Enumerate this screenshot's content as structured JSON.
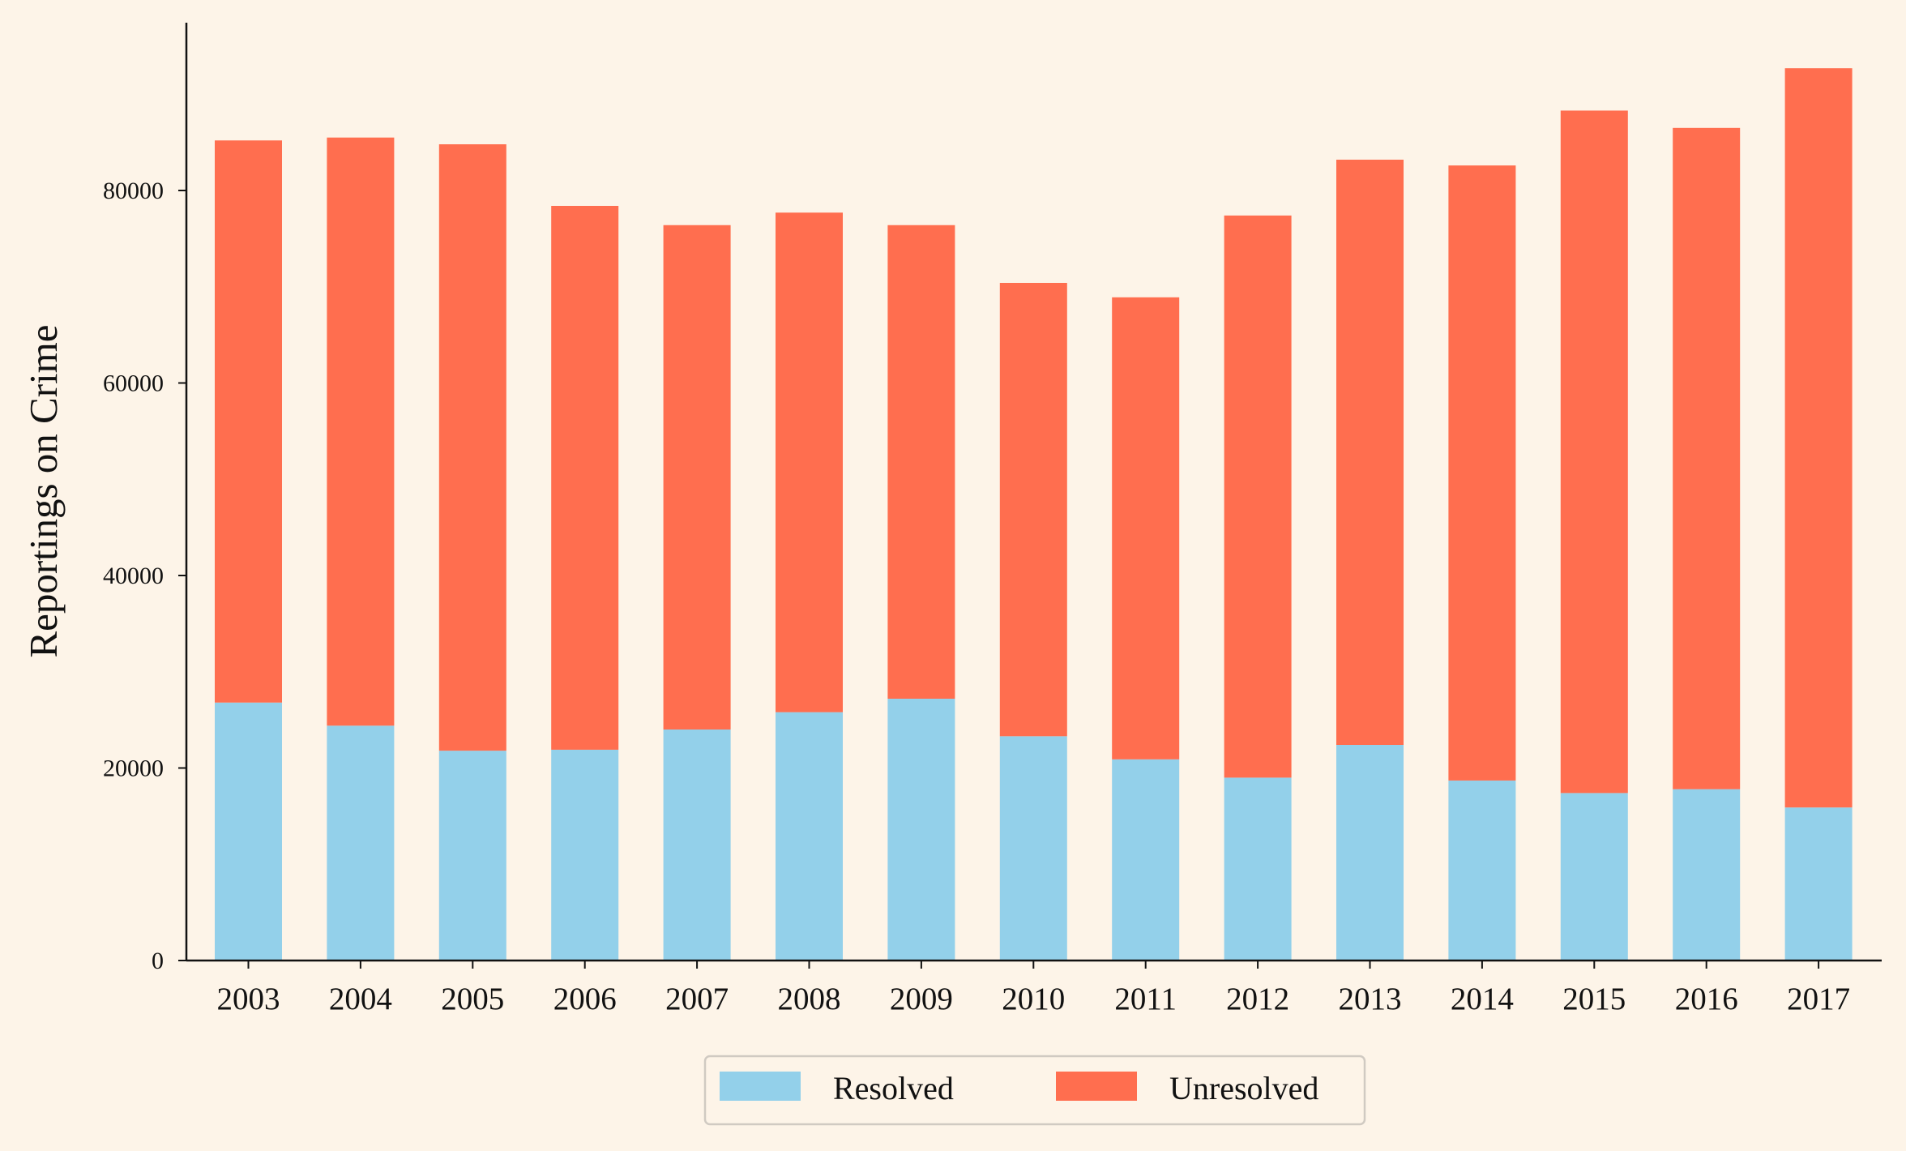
{
  "chart_data": {
    "type": "bar",
    "stacked": true,
    "categories": [
      "2003",
      "2004",
      "2005",
      "2006",
      "2007",
      "2008",
      "2009",
      "2010",
      "2011",
      "2012",
      "2013",
      "2014",
      "2015",
      "2016",
      "2017"
    ],
    "series": [
      {
        "name": "Resolved",
        "color": "#93d0ea",
        "values": [
          26800,
          24400,
          21800,
          21900,
          24000,
          25800,
          27200,
          23300,
          20900,
          19000,
          22400,
          18700,
          17400,
          17800,
          15900
        ]
      },
      {
        "name": "Unresolved",
        "color": "#ff6e4f",
        "values": [
          58400,
          61100,
          63000,
          56500,
          52400,
          51900,
          49200,
          47100,
          48000,
          58400,
          60800,
          63900,
          70900,
          68700,
          76800
        ]
      }
    ],
    "xlabel": "",
    "ylabel": "Reportings on Crime",
    "ylim": [
      0,
      97500
    ],
    "yticks": [
      "0",
      "20000",
      "40000",
      "60000",
      "80000"
    ],
    "grid": false,
    "legend_position": "bottom-center",
    "background_color": "#fdf4e8"
  }
}
